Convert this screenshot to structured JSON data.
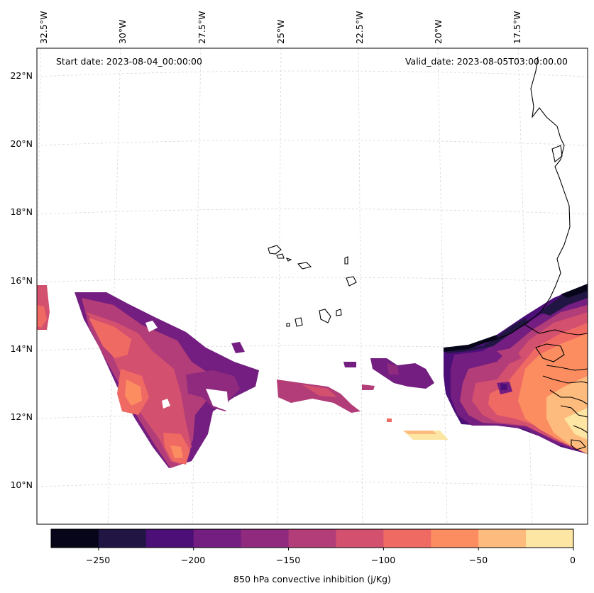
{
  "header": {
    "start_date": "Start date: 2023-08-04_00:00:00",
    "valid_date": "Valid_date: 2023-08-05T03:00:00.00"
  },
  "lon_labels": [
    "32.5°W",
    "30°W",
    "27.5°W",
    "25°W",
    "22.5°W",
    "20°W",
    "17.5°W"
  ],
  "lat_labels": [
    "22°N",
    "20°N",
    "18°N",
    "16°N",
    "14°N",
    "12°N",
    "10°N"
  ],
  "colorbar": {
    "label": "850 hPa convective inhibition (j/Kg)",
    "ticks": [
      "−250",
      "−200",
      "−150",
      "−100",
      "−50",
      "0"
    ],
    "levels": [
      -275,
      -250,
      -225,
      -200,
      -175,
      -150,
      -125,
      -100,
      -75,
      -50,
      -25,
      0
    ],
    "colors": [
      "#06051a",
      "#211544",
      "#4b0f77",
      "#731e80",
      "#8f2a7f",
      "#b23d78",
      "#d3506f",
      "#f06a64",
      "#fc8d61",
      "#febb7e",
      "#fde6a3"
    ]
  },
  "map": {
    "variable": "850 hPa convective inhibition",
    "units": "j/Kg"
  }
}
